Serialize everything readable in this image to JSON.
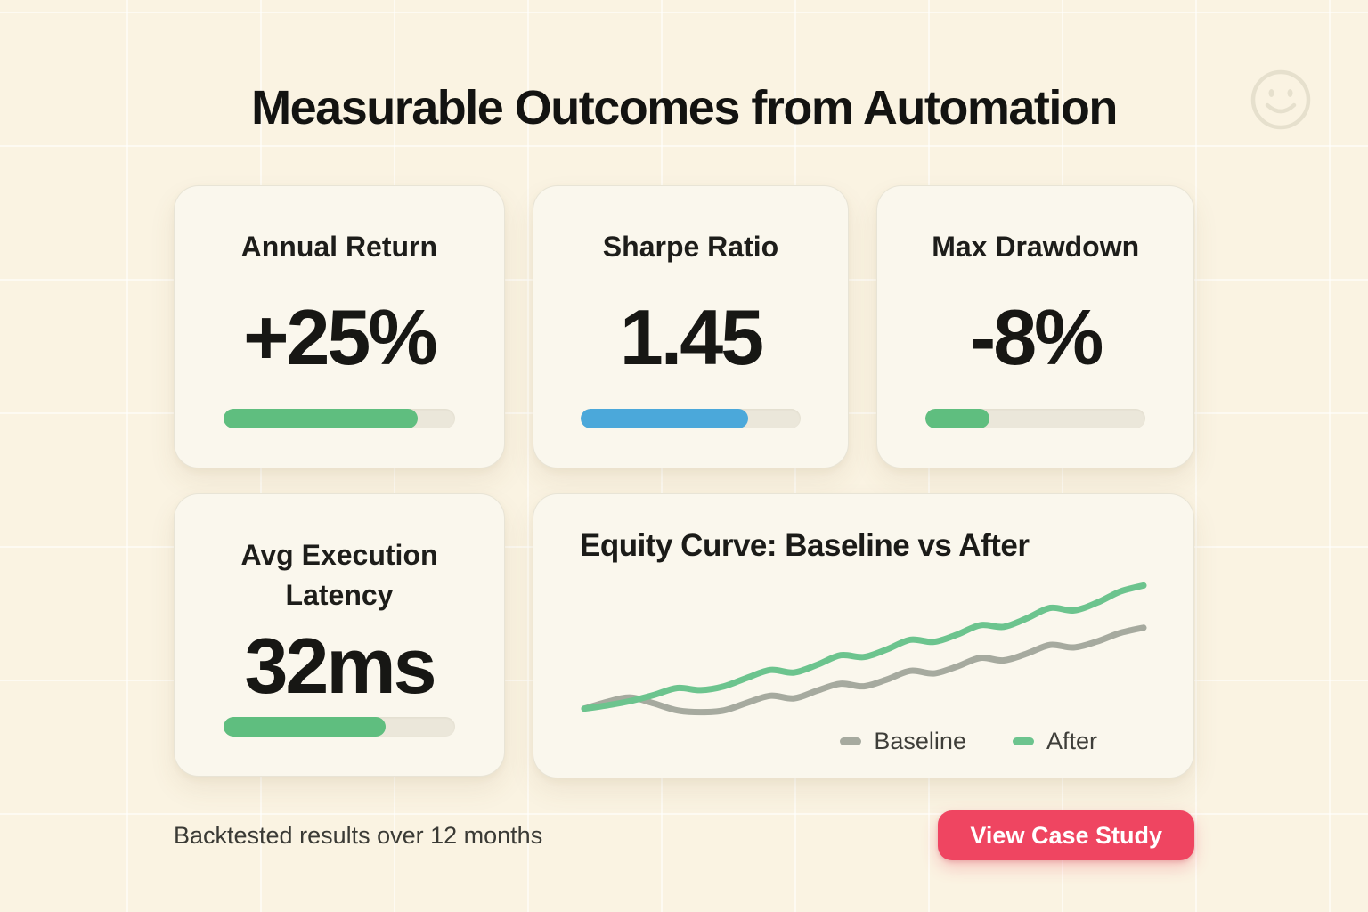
{
  "page": {
    "title": "Measurable Outcomes from Automation",
    "footer_note": "Backtested results over 12 months",
    "cta_label": "View Case Study",
    "header_icon": "smiley-icon"
  },
  "colors": {
    "background": "#faf3e2",
    "card_background": "#faf7ed",
    "progress_track": "#ebe7da",
    "accent_green": "#5fbe7f",
    "accent_blue": "#4ba8da",
    "accent_pink": "#ef4561",
    "baseline_gray": "#a6aa9f",
    "after_green": "#6cc48e"
  },
  "metrics": [
    {
      "label": "Annual Return",
      "value": "+25%",
      "bar_percent": 84,
      "bar_color": "#5fbe7f"
    },
    {
      "label": "Sharpe Ratio",
      "value": "1.45",
      "bar_percent": 76,
      "bar_color": "#4ba8da"
    },
    {
      "label": "Max Drawdown",
      "value": "-8%",
      "bar_percent": 29,
      "bar_color": "#5fbe7f"
    },
    {
      "label": "Avg Execution Latency",
      "value": "32ms",
      "bar_percent": 70,
      "bar_color": "#5fbe7f"
    }
  ],
  "chart_data": {
    "type": "line",
    "title": "Equity Curve: Baseline vs After",
    "x": [
      1,
      2,
      3,
      4,
      5,
      6,
      7,
      8,
      9,
      10,
      11,
      12,
      13,
      14,
      15,
      16,
      17,
      18,
      19,
      20,
      21,
      22,
      23,
      24,
      25
    ],
    "series": [
      {
        "name": "Baseline",
        "color": "#a6aa9f",
        "values": [
          100,
          101.6,
          102.6,
          101.2,
          99.6,
          99.2,
          99.6,
          101.4,
          103.0,
          102.4,
          104.2,
          105.8,
          105.2,
          106.8,
          108.8,
          108.2,
          109.8,
          111.8,
          111.2,
          112.8,
          114.8,
          114.2,
          115.6,
          117.6,
          118.8
        ]
      },
      {
        "name": "After",
        "color": "#6cc48e",
        "values": [
          100,
          100.8,
          101.8,
          103.2,
          104.8,
          104.3,
          105.2,
          107.2,
          109.0,
          108.4,
          110.2,
          112.4,
          112.0,
          113.8,
          116.0,
          115.5,
          117.2,
          119.4,
          119.0,
          121.0,
          123.4,
          122.8,
          124.6,
          127.2,
          128.6
        ]
      }
    ],
    "ylim": [
      98.5,
      129.5
    ],
    "xlabel": "",
    "ylabel": "",
    "grid": false,
    "axes_visible": false,
    "legend_position": "bottom-right"
  }
}
